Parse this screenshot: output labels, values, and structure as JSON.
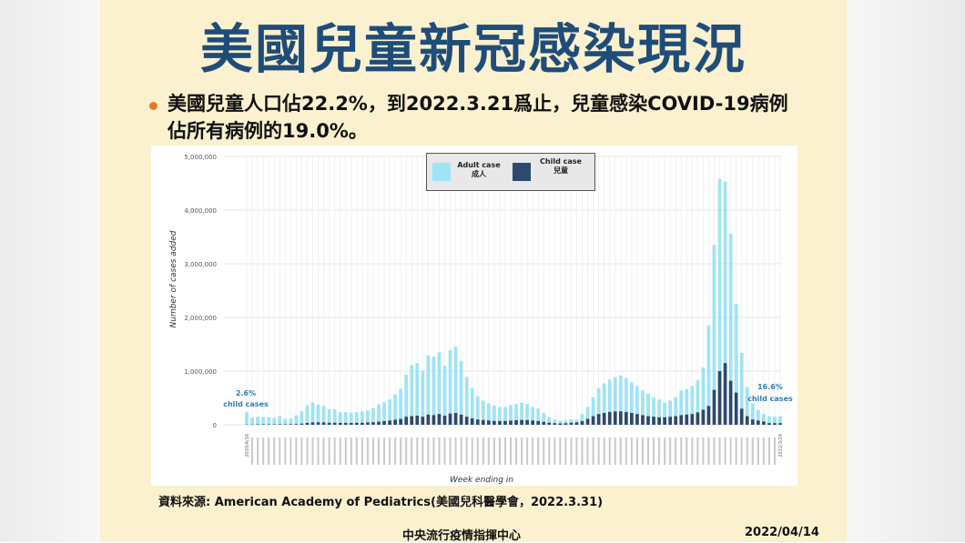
{
  "slide": {
    "title": "美國兒童新冠感染現況",
    "bullet": "美國兒童人口佔22.2%，到2022.3.21爲止，兒童感染COVID-19病例佔所有病例的19.0%。",
    "source": "資料來源: American Academy of Pediatrics(美國兒科醫學會，2022.3.31)",
    "footer_center": "中央流行疫情指揮中心",
    "footer_date": "2022/04/14"
  },
  "legend": {
    "adult_label": "Adult case",
    "adult_label_zh": "成人",
    "child_label": "Child case",
    "child_label_zh": "兒童"
  },
  "annotations": {
    "start_pct": "2.6%",
    "start_text": "child cases",
    "end_pct": "16.6%",
    "end_text": "child cases"
  },
  "chart_data": {
    "type": "bar",
    "stacked": true,
    "xlabel": "Week ending in",
    "ylabel": "Number of cases added",
    "ylim": [
      0,
      5000000
    ],
    "yticks": [
      0,
      1000000,
      2000000,
      3000000,
      4000000,
      5000000
    ],
    "ytick_labels": [
      "0",
      "1,000,000",
      "2,000,000",
      "3,000,000",
      "4,000,000",
      "5,000,000"
    ],
    "grid": true,
    "legend_position": "top-center",
    "colors": {
      "adult": "#9fe3f5",
      "child": "#2c4a6c"
    },
    "x_start_label": "2020/4/16",
    "x_end_label": "2022/3/24",
    "series": [
      {
        "name": "Adult case",
        "values": [
          230000,
          130000,
          140000,
          135000,
          130000,
          120000,
          150000,
          100000,
          110000,
          160000,
          230000,
          330000,
          370000,
          330000,
          310000,
          250000,
          250000,
          200000,
          200000,
          190000,
          200000,
          210000,
          220000,
          260000,
          320000,
          350000,
          390000,
          470000,
          560000,
          780000,
          950000,
          980000,
          860000,
          1100000,
          1090000,
          1150000,
          930000,
          1180000,
          1230000,
          1000000,
          740000,
          560000,
          430000,
          360000,
          320000,
          280000,
          260000,
          260000,
          290000,
          300000,
          320000,
          300000,
          250000,
          230000,
          170000,
          100000,
          70000,
          50000,
          50000,
          60000,
          50000,
          130000,
          220000,
          350000,
          480000,
          550000,
          600000,
          640000,
          670000,
          630000,
          570000,
          520000,
          460000,
          420000,
          360000,
          330000,
          270000,
          300000,
          350000,
          460000,
          470000,
          520000,
          600000,
          790000,
          1500000,
          2700000,
          3580000,
          3380000,
          2740000,
          1650000,
          1040000,
          540000,
          300000,
          190000,
          140000,
          130000,
          120000,
          130000
        ]
      },
      {
        "name": "Child case",
        "values": [
          6000,
          6000,
          8000,
          9000,
          8000,
          8000,
          10000,
          9000,
          10000,
          14000,
          22000,
          35000,
          45000,
          45000,
          45000,
          38000,
          38000,
          35000,
          35000,
          35000,
          35000,
          38000,
          42000,
          48000,
          58000,
          70000,
          80000,
          95000,
          110000,
          150000,
          160000,
          170000,
          150000,
          190000,
          180000,
          200000,
          170000,
          210000,
          220000,
          190000,
          150000,
          120000,
          100000,
          90000,
          80000,
          72000,
          70000,
          72000,
          78000,
          85000,
          90000,
          88000,
          80000,
          70000,
          55000,
          40000,
          30000,
          25000,
          30000,
          40000,
          45000,
          70000,
          110000,
          160000,
          200000,
          220000,
          240000,
          250000,
          250000,
          240000,
          220000,
          200000,
          180000,
          160000,
          150000,
          140000,
          140000,
          150000,
          160000,
          180000,
          190000,
          200000,
          230000,
          280000,
          350000,
          650000,
          1000000,
          1150000,
          820000,
          600000,
          300000,
          160000,
          100000,
          80000,
          60000,
          30000,
          30000,
          30000
        ]
      }
    ]
  }
}
